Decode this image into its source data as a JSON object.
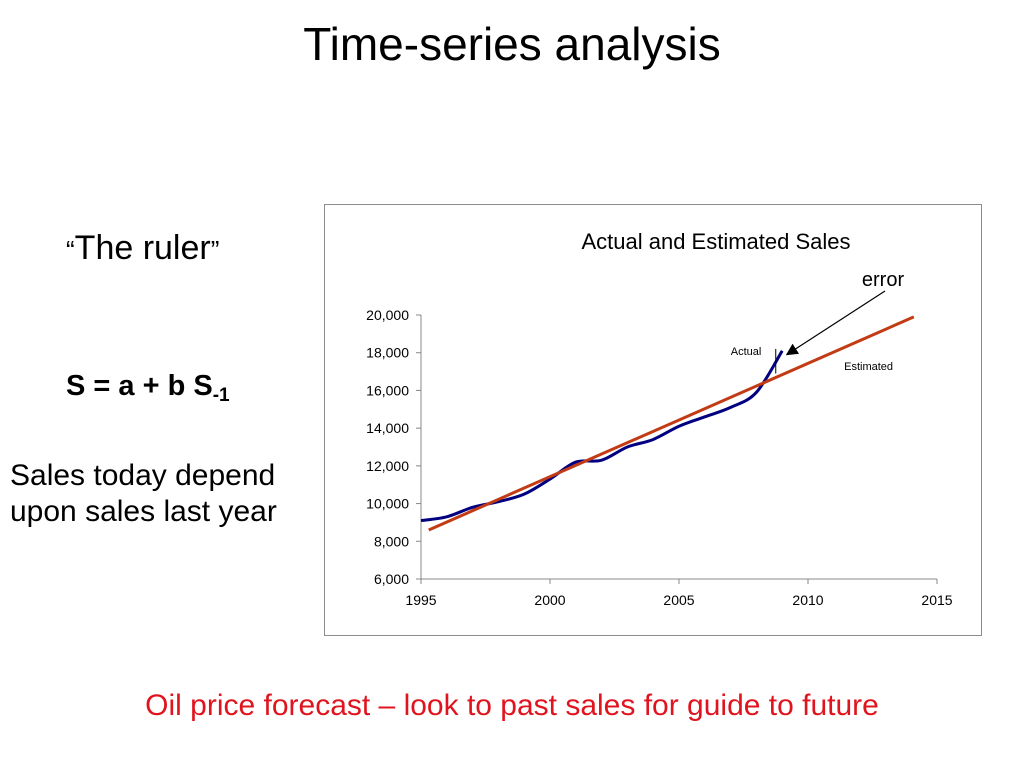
{
  "slide": {
    "title": "Time-series analysis",
    "ruler_open_quote": "“",
    "ruler_text": "The ruler",
    "ruler_close_quote": "”",
    "formula_main": "S = a + b S",
    "formula_sub": "-1",
    "description": "Sales today depend upon sales last year",
    "footer": "Oil price forecast – look to past sales for guide to future",
    "footer_color": "#e0141e"
  },
  "chart_data": {
    "type": "line",
    "title": "Actual and Estimated Sales",
    "xlabel": "",
    "ylabel": "",
    "xlim": [
      1995,
      2015
    ],
    "ylim": [
      6000,
      20000
    ],
    "x_ticks": [
      1995,
      2000,
      2005,
      2010,
      2015
    ],
    "y_ticks": [
      6000,
      8000,
      10000,
      12000,
      14000,
      16000,
      18000,
      20000
    ],
    "x_tick_labels": [
      "1995",
      "2000",
      "2005",
      "2010",
      "2015"
    ],
    "y_tick_labels": [
      "6,000",
      "8,000",
      "10,000",
      "12,000",
      "14,000",
      "16,000",
      "18,000",
      "20,000"
    ],
    "grid": false,
    "series": [
      {
        "name": "Actual",
        "color": "#000080",
        "x": [
          1995,
          1996,
          1997,
          1998,
          1999,
          2000,
          2001,
          2002,
          2003,
          2004,
          2005,
          2006,
          2007,
          2008,
          2009
        ],
        "y": [
          9100,
          9300,
          9800,
          10100,
          10500,
          11300,
          12200,
          12300,
          13000,
          13400,
          14100,
          14600,
          15100,
          15900,
          18100
        ]
      },
      {
        "name": "Estimated",
        "color": "#c23b14",
        "x": [
          1995.3,
          2014.1
        ],
        "y": [
          8600,
          19900
        ]
      }
    ],
    "annotations": [
      {
        "text": "error",
        "x_from": 2008.75,
        "x_to": 2009.1,
        "y": [
          16900,
          18200
        ]
      }
    ]
  }
}
